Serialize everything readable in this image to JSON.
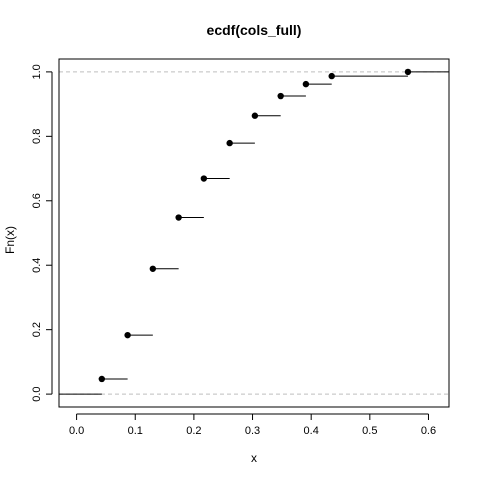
{
  "chart_data": {
    "type": "step",
    "title": "ecdf(cols_full)",
    "xlabel": "x",
    "ylabel": "Fn(x)",
    "xlim": [
      -0.03,
      0.635
    ],
    "ylim": [
      -0.04,
      1.04
    ],
    "xticks": [
      0.0,
      0.1,
      0.2,
      0.3,
      0.4,
      0.5,
      0.6
    ],
    "xtick_labels": [
      "0.0",
      "0.1",
      "0.2",
      "0.3",
      "0.4",
      "0.5",
      "0.6"
    ],
    "yticks": [
      0.0,
      0.2,
      0.4,
      0.6,
      0.8,
      1.0
    ],
    "ytick_labels": [
      "0.0",
      "0.2",
      "0.4",
      "0.6",
      "0.8",
      "1.0"
    ],
    "reference_lines_y": [
      0,
      1
    ],
    "points": [
      {
        "x": 0.043,
        "y": 0.047
      },
      {
        "x": 0.087,
        "y": 0.183
      },
      {
        "x": 0.13,
        "y": 0.389
      },
      {
        "x": 0.174,
        "y": 0.548
      },
      {
        "x": 0.217,
        "y": 0.669
      },
      {
        "x": 0.261,
        "y": 0.779
      },
      {
        "x": 0.304,
        "y": 0.864
      },
      {
        "x": 0.348,
        "y": 0.925
      },
      {
        "x": 0.391,
        "y": 0.962
      },
      {
        "x": 0.435,
        "y": 0.987
      },
      {
        "x": 0.565,
        "y": 1.0
      }
    ]
  }
}
